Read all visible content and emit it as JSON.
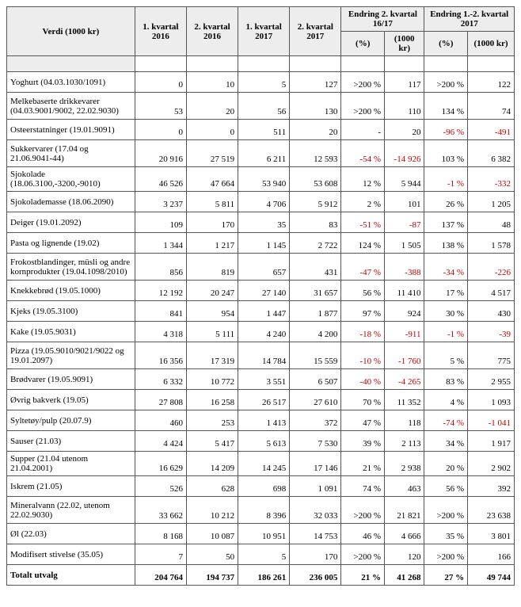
{
  "headers": {
    "col0": "Verdi (1000 kr)",
    "col1": "1. kvartal 2016",
    "col2": "2. kvartal 2016",
    "col3": "1. kvartal 2017",
    "col4": "2. kvartal 2017",
    "grp1": "Endring 2. kvartal 16/17",
    "grp2": "Endring 1.-2. kvartal 2017",
    "pct": "(%)",
    "kr": "(1000 kr)"
  },
  "rows": [
    {
      "label": "Yoghurt (04.03.1030/1091)",
      "v": [
        "0",
        "10",
        "5",
        "127",
        ">200 %",
        "117",
        ">200 %",
        "122"
      ],
      "neg": [
        false,
        false,
        false,
        false,
        false,
        false,
        false,
        false
      ],
      "tall": false
    },
    {
      "label": "Melkebaserte drikkevarer (04.03.9001/9002, 22.02.9030)",
      "v": [
        "53",
        "20",
        "56",
        "130",
        ">200 %",
        "110",
        "134 %",
        "74"
      ],
      "neg": [
        false,
        false,
        false,
        false,
        false,
        false,
        false,
        false
      ],
      "tall": true
    },
    {
      "label": "Osteerstatninger (19.01.9091)",
      "v": [
        "0",
        "0",
        "511",
        "20",
        "-",
        "20",
        "-96 %",
        "-491"
      ],
      "neg": [
        false,
        false,
        false,
        false,
        false,
        false,
        true,
        true
      ],
      "tall": false
    },
    {
      "label": "Sukkervarer (17.04 og 21.06.9041-44)",
      "v": [
        "20 916",
        "27 519",
        "6 211",
        "12 593",
        "-54 %",
        "-14 926",
        "103 %",
        "6 382"
      ],
      "neg": [
        false,
        false,
        false,
        false,
        true,
        true,
        false,
        false
      ],
      "tall": true
    },
    {
      "label": "Sjokolade (18.06.3100,-3200,-9010)",
      "v": [
        "46 526",
        "47 664",
        "53 940",
        "53 608",
        "12 %",
        "5 944",
        "-1 %",
        "-332"
      ],
      "neg": [
        false,
        false,
        false,
        false,
        false,
        false,
        true,
        true
      ],
      "tall": false
    },
    {
      "label": "Sjokolademasse (18.06.2090)",
      "v": [
        "3 237",
        "5 811",
        "4 706",
        "5 912",
        "2 %",
        "101",
        "26 %",
        "1 205"
      ],
      "neg": [
        false,
        false,
        false,
        false,
        false,
        false,
        false,
        false
      ],
      "tall": false
    },
    {
      "label": "Deiger (19.01.2092)",
      "v": [
        "109",
        "170",
        "35",
        "83",
        "-51 %",
        "-87",
        "137 %",
        "48"
      ],
      "neg": [
        false,
        false,
        false,
        false,
        true,
        true,
        false,
        false
      ],
      "tall": false
    },
    {
      "label": "Pasta og lignende (19.02)",
      "v": [
        "1 344",
        "1 217",
        "1 145",
        "2 722",
        "124 %",
        "1 505",
        "138 %",
        "1 578"
      ],
      "neg": [
        false,
        false,
        false,
        false,
        false,
        false,
        false,
        false
      ],
      "tall": false
    },
    {
      "label": "Frokostblandinger, müsli og andre kornprodukter (19.04.1098/2010)",
      "v": [
        "856",
        "819",
        "657",
        "431",
        "-47 %",
        "-388",
        "-34 %",
        "-226"
      ],
      "neg": [
        false,
        false,
        false,
        false,
        true,
        true,
        true,
        true
      ],
      "tall": true
    },
    {
      "label": "Knekkebrød (19.05.1000)",
      "v": [
        "12 192",
        "20 247",
        "27 140",
        "31 657",
        "56 %",
        "11 410",
        "17 %",
        "4 517"
      ],
      "neg": [
        false,
        false,
        false,
        false,
        false,
        false,
        false,
        false
      ],
      "tall": false
    },
    {
      "label": "Kjeks (19.05.3100)",
      "v": [
        "841",
        "954",
        "1 447",
        "1 877",
        "97 %",
        "924",
        "30 %",
        "430"
      ],
      "neg": [
        false,
        false,
        false,
        false,
        false,
        false,
        false,
        false
      ],
      "tall": false
    },
    {
      "label": "Kake (19.05.9031)",
      "v": [
        "4 318",
        "5 111",
        "4 240",
        "4 200",
        "-18 %",
        "-911",
        "-1 %",
        "-39"
      ],
      "neg": [
        false,
        false,
        false,
        false,
        true,
        true,
        true,
        true
      ],
      "tall": false
    },
    {
      "label": "Pizza (19.05.9010/9021/9022 og 19.01.2097)",
      "v": [
        "16 356",
        "17 319",
        "14 784",
        "15 559",
        "-10 %",
        "-1 760",
        "5 %",
        "775"
      ],
      "neg": [
        false,
        false,
        false,
        false,
        true,
        true,
        false,
        false
      ],
      "tall": true
    },
    {
      "label": "Brødvarer (19.05.9091)",
      "v": [
        "6 332",
        "10 772",
        "3 551",
        "6 507",
        "-40 %",
        "-4 265",
        "83 %",
        "2 955"
      ],
      "neg": [
        false,
        false,
        false,
        false,
        true,
        true,
        false,
        false
      ],
      "tall": false
    },
    {
      "label": "Øvrig bakverk (19.05)",
      "v": [
        "27 808",
        "16 258",
        "26 517",
        "27 610",
        "70 %",
        "11 352",
        "4 %",
        "1 093"
      ],
      "neg": [
        false,
        false,
        false,
        false,
        false,
        false,
        false,
        false
      ],
      "tall": false
    },
    {
      "label": "Syltetøy/pulp (20.07.9)",
      "v": [
        "460",
        "253",
        "1 413",
        "372",
        "47 %",
        "118",
        "-74 %",
        "-1 041"
      ],
      "neg": [
        false,
        false,
        false,
        false,
        false,
        false,
        true,
        true
      ],
      "tall": false
    },
    {
      "label": "Sauser (21.03)",
      "v": [
        "4 424",
        "5 417",
        "5 613",
        "7 530",
        "39 %",
        "2 113",
        "34 %",
        "1 917"
      ],
      "neg": [
        false,
        false,
        false,
        false,
        false,
        false,
        false,
        false
      ],
      "tall": false
    },
    {
      "label": "Supper (21.04 utenom 21.04.2001)",
      "v": [
        "16 629",
        "14 209",
        "14 245",
        "17 146",
        "21 %",
        "2 938",
        "20 %",
        "2 902"
      ],
      "neg": [
        false,
        false,
        false,
        false,
        false,
        false,
        false,
        false
      ],
      "tall": false
    },
    {
      "label": "Iskrem (21.05)",
      "v": [
        "526",
        "628",
        "698",
        "1 091",
        "74 %",
        "463",
        "56 %",
        "392"
      ],
      "neg": [
        false,
        false,
        false,
        false,
        false,
        false,
        false,
        false
      ],
      "tall": false
    },
    {
      "label": "Mineralvann (22.02, utenom 22.02.9030)",
      "v": [
        "33 662",
        "10 212",
        "8 396",
        "32 033",
        ">200 %",
        "21 821",
        ">200 %",
        "23 638"
      ],
      "neg": [
        false,
        false,
        false,
        false,
        false,
        false,
        false,
        false
      ],
      "tall": true
    },
    {
      "label": "Øl (22.03)",
      "v": [
        "8 168",
        "10 087",
        "10 951",
        "14 753",
        "46 %",
        "4 666",
        "35 %",
        "3 801"
      ],
      "neg": [
        false,
        false,
        false,
        false,
        false,
        false,
        false,
        false
      ],
      "tall": false
    },
    {
      "label": "Modifisert stivelse (35.05)",
      "v": [
        "7",
        "50",
        "5",
        "170",
        ">200 %",
        "120",
        ">200 %",
        "166"
      ],
      "neg": [
        false,
        false,
        false,
        false,
        false,
        false,
        false,
        false
      ],
      "tall": false
    }
  ],
  "total": {
    "label": "Totalt utvalg",
    "v": [
      "204 764",
      "194 737",
      "186 261",
      "236 005",
      "21 %",
      "41 268",
      "27 %",
      "49 744"
    ],
    "neg": [
      false,
      false,
      false,
      false,
      false,
      false,
      false,
      false
    ]
  }
}
